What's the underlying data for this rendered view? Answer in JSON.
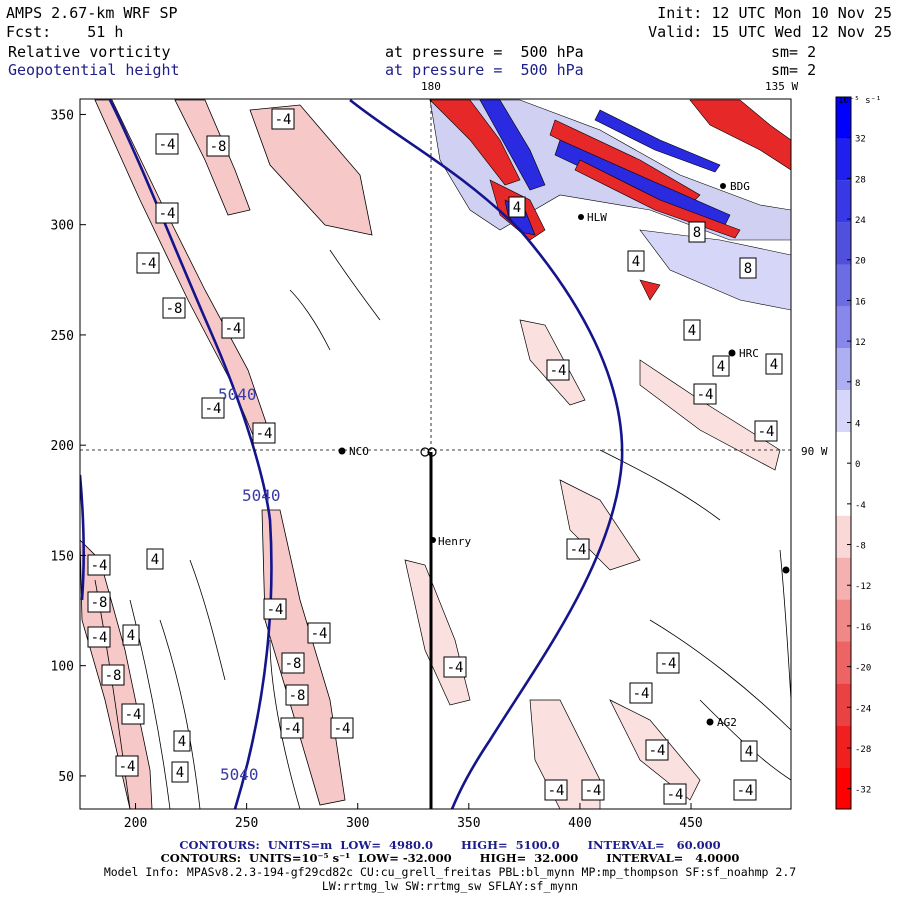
{
  "header": {
    "model_title": "AMPS 2.67-km WRF SP",
    "forecast": "Fcst:    51 h",
    "init": "Init: 12 UTC Mon 10 Nov 25",
    "valid": "Valid: 15 UTC Wed 12 Nov 25",
    "field1_name": "Relative vorticity",
    "field1_level": "at pressure =  500 hPa",
    "field1_smooth": "sm= 2",
    "field2_name": "Geopotential height",
    "field2_level": "at pressure =  500 hPa",
    "field2_smooth": "sm= 2",
    "colors": {
      "text": "#000000",
      "field2_text": "#1c1c8c"
    }
  },
  "map": {
    "meridian_labels": [
      {
        "text": "180"
      },
      {
        "text": "135 W"
      },
      {
        "text": "90 W"
      }
    ],
    "stations": [
      "NCO",
      "Henry",
      "BDG",
      "HRC",
      "AG2",
      "HLW"
    ],
    "height_contour_labels": [
      "5040",
      "5040",
      "5040"
    ],
    "vorticity_labels": [
      "-4",
      "-8",
      "4",
      "8"
    ],
    "colors": {
      "height_contour": "#14148c",
      "positive_vorticity": "#1e1ed2",
      "negative_vorticity": "#e61e1e"
    }
  },
  "axes": {
    "x_ticks": [
      "200",
      "250",
      "300",
      "350",
      "400",
      "450"
    ],
    "y_ticks": [
      "350",
      "300",
      "250",
      "200",
      "150",
      "100",
      "50"
    ],
    "x_range": [
      175,
      495
    ],
    "y_range": [
      35,
      357
    ]
  },
  "colorbar": {
    "units": "10⁻⁵ s⁻¹",
    "tick_labels": [
      "32",
      "28",
      "24",
      "20",
      "16",
      "12",
      "8",
      "4",
      "0",
      "-4",
      "-8",
      "-12",
      "-16",
      "-20",
      "-24",
      "-28",
      "-32"
    ],
    "colors": [
      "#0000ff",
      "#2020ee",
      "#3838e6",
      "#5050dd",
      "#6c6ce4",
      "#8888ec",
      "#aeaef2",
      "#d6d6fa",
      "#ffffff",
      "#ffffff",
      "#fbd8d8",
      "#f5b0b0",
      "#f08888",
      "#ee6464",
      "#ea4242",
      "#f02020",
      "#ff0000"
    ]
  },
  "footer": {
    "line1": "CONTOURS:  UNITS=m  LOW=  4980.0       HIGH=  5100.0       INTERVAL=   60.000",
    "line2": "CONTOURS:  UNITS=10⁻⁵ s⁻¹  LOW= -32.000       HIGH=  32.000       INTERVAL=   4.0000",
    "line3": "Model Info: MPASv8.2.3-194-gf29cd82c CU:cu_grell_freitas PBL:bl_mynn MP:mp_thompson SF:sf_noahmp 2.7",
    "line4": "LW:rrtmg_lw SW:rrtmg_sw SFLAY:sf_mynn"
  }
}
